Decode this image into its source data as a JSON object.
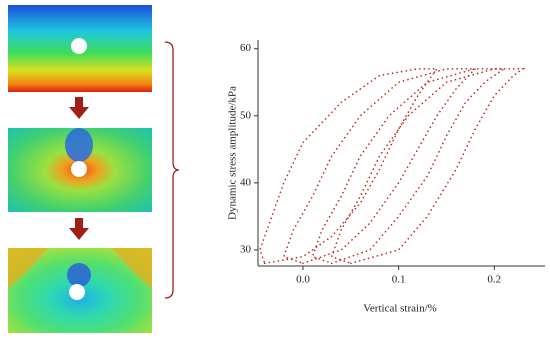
{
  "chart_data": {
    "type": "line",
    "x_label": "Vertical strain/%",
    "y_label": "Dynamic stress amplitude/kPa",
    "xlim": [
      -0.047,
      0.253
    ],
    "ylim": [
      27.6,
      61.3
    ],
    "xticks": [
      {
        "value": 0,
        "label": "0.0"
      },
      0.1,
      0.2
    ],
    "yticks": [
      30,
      40,
      50,
      60
    ],
    "line_style": "dotted",
    "series": [
      {
        "color": "#c0281c",
        "x": [
          -0.04,
          0.0,
          0.03,
          0.06,
          0.08,
          0.1,
          0.12,
          0.14,
          0.12,
          0.08,
          0.04,
          0.0,
          -0.02,
          -0.035,
          -0.045,
          -0.04
        ],
        "values": [
          28,
          29,
          32,
          37,
          42,
          48,
          53,
          57,
          57,
          56,
          52,
          46,
          40,
          34,
          30,
          28
        ]
      },
      {
        "color": "#c0281c",
        "x": [
          0.0,
          0.04,
          0.07,
          0.1,
          0.12,
          0.14,
          0.16,
          0.18,
          0.15,
          0.1,
          0.06,
          0.03,
          0.01,
          -0.01,
          -0.02,
          0.0
        ],
        "values": [
          28,
          30,
          34,
          40,
          45,
          50,
          54,
          57,
          57,
          55,
          50,
          44,
          38,
          33,
          29,
          28
        ]
      },
      {
        "color": "#c0281c",
        "x": [
          0.03,
          0.07,
          0.1,
          0.13,
          0.15,
          0.17,
          0.19,
          0.21,
          0.18,
          0.13,
          0.09,
          0.06,
          0.04,
          0.02,
          0.01,
          0.03
        ],
        "values": [
          28,
          30,
          35,
          41,
          47,
          52,
          55,
          57,
          57,
          55,
          50,
          44,
          38,
          33,
          29,
          28
        ]
      },
      {
        "color": "#c0281c",
        "x": [
          0.05,
          0.1,
          0.13,
          0.16,
          0.18,
          0.2,
          0.22,
          0.23,
          0.2,
          0.15,
          0.11,
          0.08,
          0.06,
          0.04,
          0.03,
          0.05
        ],
        "values": [
          28,
          30,
          35,
          42,
          48,
          53,
          56,
          57,
          57,
          55,
          50,
          44,
          38,
          33,
          29,
          28
        ]
      }
    ]
  }
}
